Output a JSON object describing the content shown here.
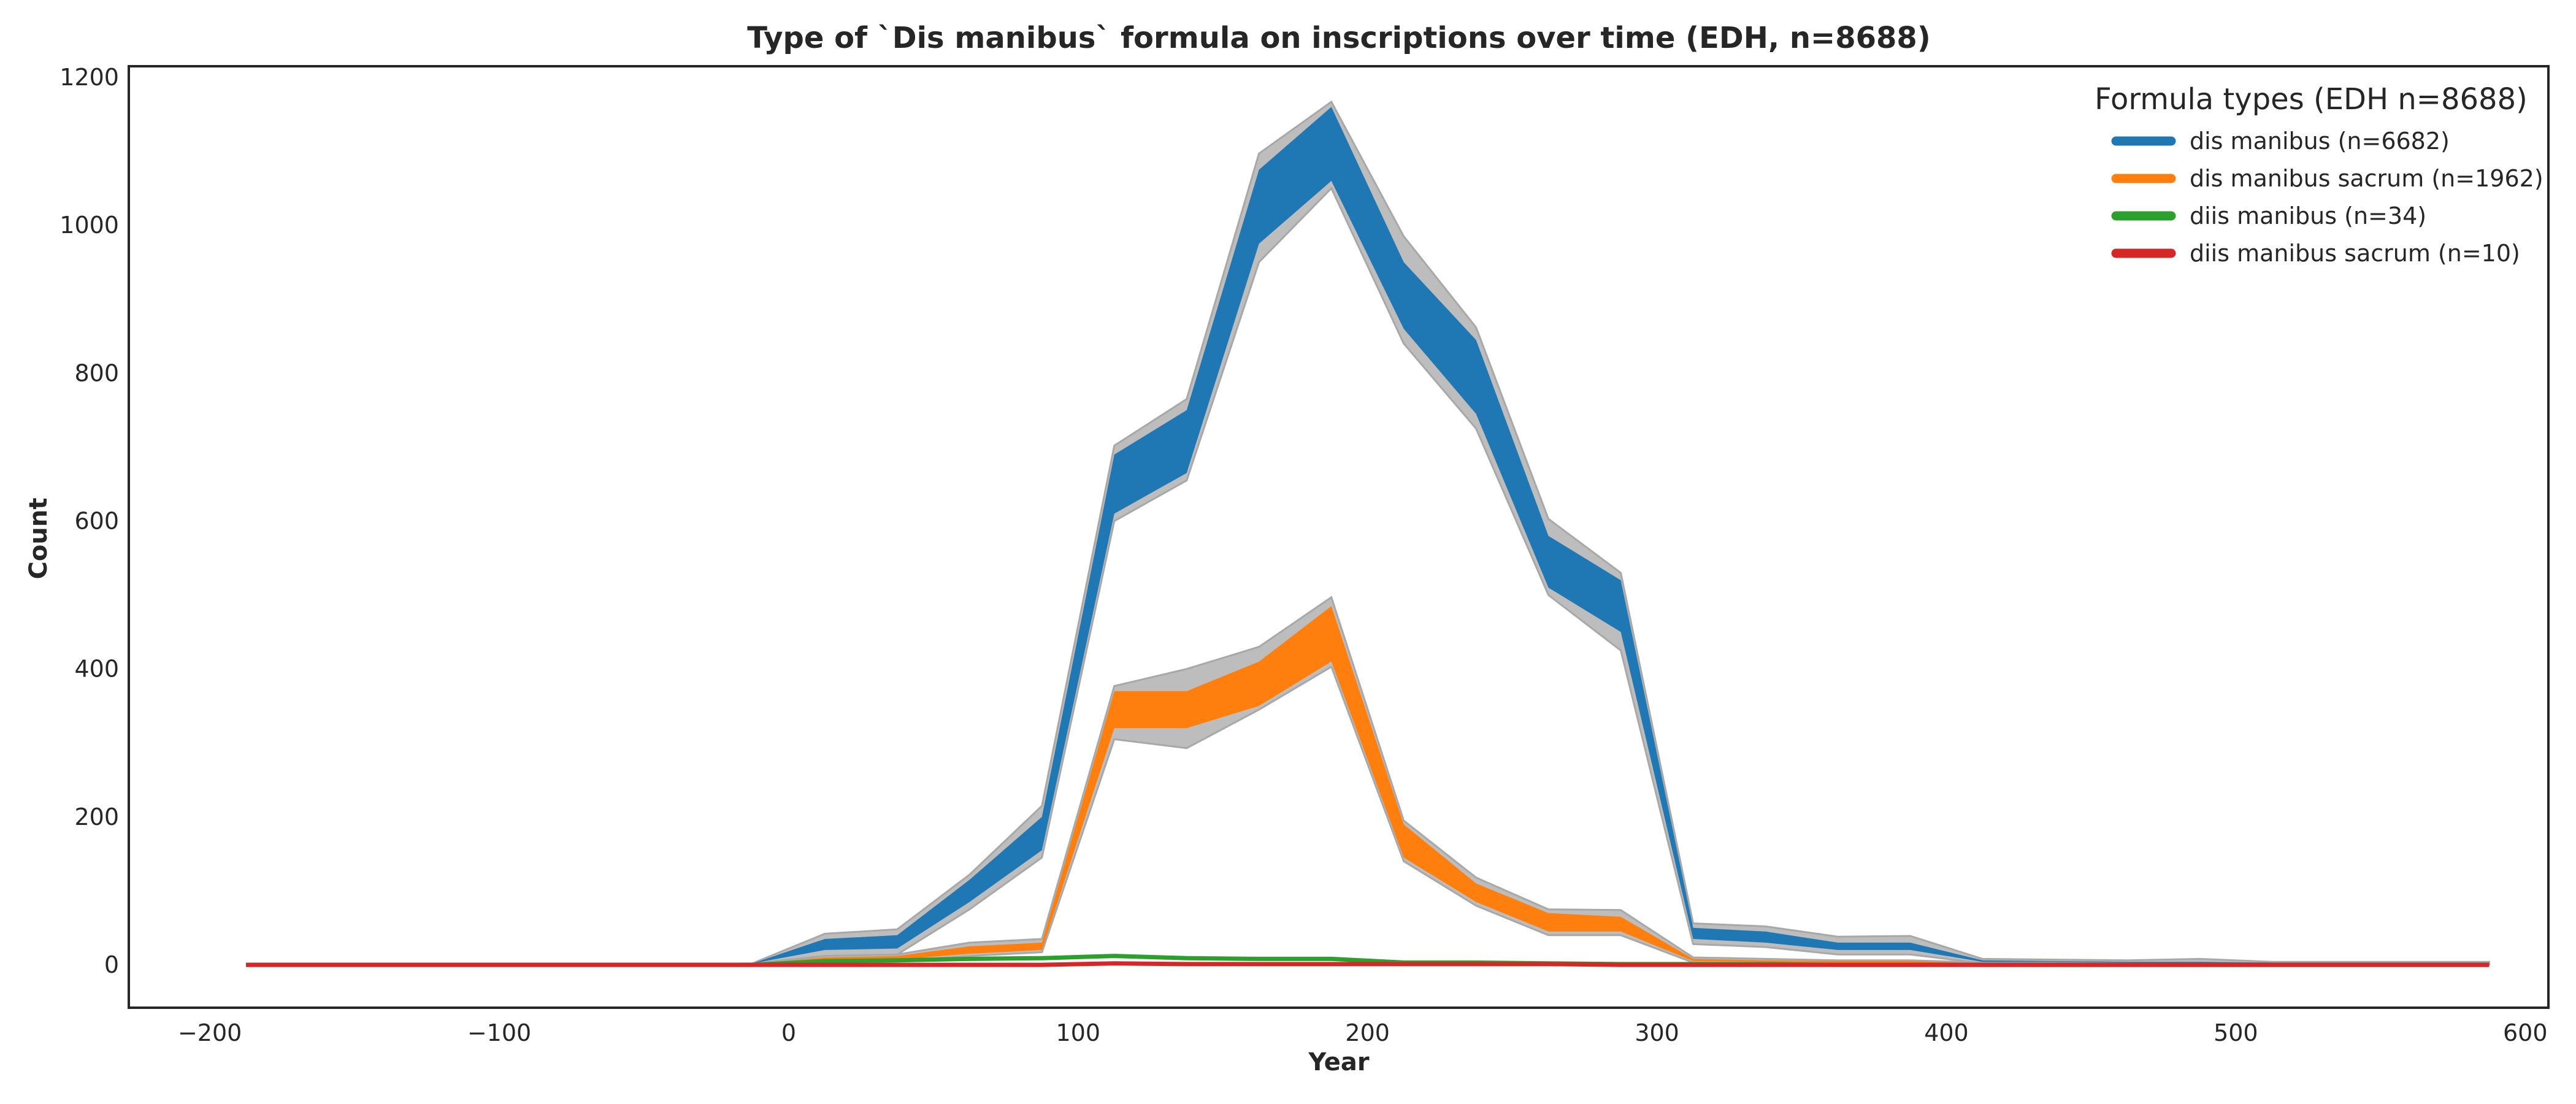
{
  "chart_data": {
    "type": "area",
    "title": "Type of `Dis manibus` formula on inscriptions over time (EDH, n=8688)",
    "xlabel": "Year",
    "ylabel": "Count",
    "xlim": [
      -228,
      608
    ],
    "ylim": [
      -58,
      1215
    ],
    "xticks": [
      -200,
      -100,
      0,
      100,
      200,
      300,
      400,
      500,
      600
    ],
    "xtick_labels": [
      "−200",
      "−100",
      "0",
      "100",
      "200",
      "300",
      "400",
      "500",
      "600"
    ],
    "yticks": [
      0,
      200,
      400,
      600,
      800,
      1000,
      1200
    ],
    "ytick_labels": [
      "0",
      "200",
      "400",
      "600",
      "800",
      "1000",
      "1200"
    ],
    "grid": false,
    "legend": {
      "title": "Formula types (EDH n=8688)",
      "placement": "top-right"
    },
    "x": [
      -187.5,
      -162.5,
      -137.5,
      -112.5,
      -87.5,
      -62.5,
      -37.5,
      -12.5,
      12.5,
      37.5,
      62.5,
      87.5,
      112.5,
      137.5,
      162.5,
      187.5,
      212.5,
      237.5,
      262.5,
      287.5,
      312.5,
      337.5,
      362.5,
      387.5,
      412.5,
      437.5,
      462.5,
      487.5,
      512.5,
      537.5,
      562.5,
      587.5
    ],
    "series": [
      {
        "name": "dis manibus (n=6682)",
        "color": "#1f77b4",
        "upper": [
          0,
          0,
          0,
          0,
          0,
          0,
          1,
          2,
          35,
          40,
          115,
          200,
          690,
          750,
          1075,
          1160,
          950,
          845,
          580,
          520,
          50,
          45,
          30,
          30,
          6,
          5,
          4,
          4,
          3,
          3,
          3,
          3
        ],
        "lower": [
          0,
          0,
          0,
          0,
          0,
          0,
          1,
          2,
          20,
          22,
          85,
          155,
          610,
          665,
          975,
          1060,
          860,
          745,
          510,
          450,
          35,
          30,
          20,
          20,
          4,
          4,
          3,
          2,
          2,
          2,
          2,
          2
        ],
        "band_upper": [
          0,
          0,
          0,
          0,
          0,
          0,
          1,
          2,
          42,
          48,
          122,
          215,
          702,
          765,
          1097,
          1167,
          985,
          862,
          603,
          530,
          56,
          52,
          38,
          39,
          8,
          7,
          6,
          8,
          4,
          4,
          4,
          4
        ],
        "band_lower": [
          0,
          0,
          0,
          0,
          0,
          0,
          1,
          2,
          12,
          14,
          75,
          145,
          600,
          655,
          950,
          1050,
          840,
          725,
          500,
          425,
          28,
          24,
          14,
          14,
          2,
          2,
          1,
          1,
          1,
          1,
          1,
          1
        ]
      },
      {
        "name": "dis manibus sacrum (n=1962)",
        "color": "#ff7f0e",
        "upper": [
          0,
          0,
          0,
          0,
          0,
          0,
          0,
          1,
          10,
          12,
          25,
          30,
          370,
          370,
          410,
          485,
          190,
          110,
          70,
          65,
          8,
          6,
          5,
          5,
          2,
          2,
          1,
          1,
          1,
          1,
          1,
          1
        ],
        "lower": [
          0,
          0,
          0,
          0,
          0,
          0,
          0,
          1,
          6,
          7,
          15,
          20,
          320,
          320,
          350,
          410,
          145,
          85,
          45,
          45,
          5,
          4,
          3,
          3,
          1,
          1,
          1,
          1,
          1,
          1,
          1,
          1
        ],
        "band_upper": [
          0,
          0,
          0,
          0,
          0,
          0,
          0,
          1,
          12,
          14,
          30,
          35,
          377,
          400,
          430,
          497,
          195,
          118,
          75,
          74,
          10,
          8,
          6,
          6,
          3,
          3,
          2,
          2,
          2,
          2,
          2,
          2
        ],
        "band_lower": [
          0,
          0,
          0,
          0,
          0,
          0,
          0,
          1,
          4,
          5,
          12,
          17,
          305,
          293,
          345,
          403,
          140,
          80,
          40,
          40,
          3,
          2,
          2,
          2,
          1,
          1,
          0,
          0,
          0,
          0,
          0,
          0
        ]
      },
      {
        "name": "diis manibus (n=34)",
        "color": "#2ca02c",
        "values": [
          0,
          0,
          0,
          0,
          0,
          0,
          0,
          0,
          5,
          6,
          8,
          9,
          12,
          9,
          8,
          8,
          3,
          3,
          2,
          1,
          1,
          1,
          0,
          0,
          0,
          0,
          0,
          0,
          0,
          0,
          0,
          0
        ]
      },
      {
        "name": "diis manibus sacrum (n=10)",
        "color": "#d62728",
        "values": [
          0,
          0,
          0,
          0,
          0,
          0,
          0,
          0,
          0,
          0,
          0,
          0,
          2,
          1,
          1,
          1,
          1,
          1,
          1,
          0,
          0,
          0,
          0,
          0,
          0,
          0,
          0,
          0,
          0,
          0,
          0,
          0
        ]
      }
    ]
  }
}
